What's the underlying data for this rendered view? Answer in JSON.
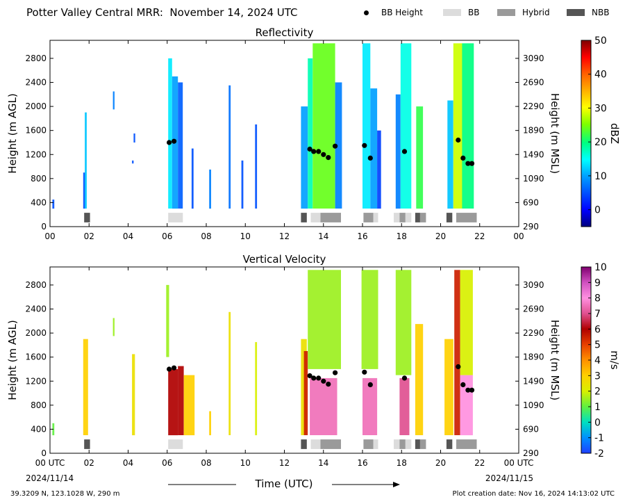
{
  "header": {
    "title": "Potter Valley Central MRR:  November 14, 2024 UTC",
    "legend": [
      {
        "label": "BB Height",
        "kind": "dot",
        "color": "#000000"
      },
      {
        "label": "BB",
        "kind": "box",
        "color": "#dcdcdc"
      },
      {
        "label": "Hybrid",
        "kind": "box",
        "color": "#9a9a9a"
      },
      {
        "label": "NBB",
        "kind": "box",
        "color": "#555555"
      }
    ]
  },
  "footer": {
    "location": "39.3209 N, 123.1028 W, 290 m",
    "created": "Plot creation date: Nov 16, 2024 14:13:02 UTC",
    "xlabel": "Time (UTC)",
    "start_utc": "00 UTC",
    "start_date": "2024/11/14",
    "end_utc": "00 UTC",
    "end_date": "2024/11/15"
  },
  "chart_data": [
    {
      "type": "heatmap",
      "title": "Reflectivity",
      "ylabel": "Height (m AGL)",
      "y2label": "Height (m MSL)",
      "cbar_label": "dBZ",
      "cbar_ticks": [
        "0",
        "10",
        "20",
        "30",
        "40",
        "50"
      ],
      "cbar_range": [
        -5,
        50
      ],
      "x_ticks": [
        "00",
        "02",
        "04",
        "06",
        "08",
        "10",
        "12",
        "14",
        "16",
        "18",
        "20",
        "22",
        "00"
      ],
      "xlim": [
        0,
        24
      ],
      "y_ticks": [
        "0",
        "400",
        "800",
        "1200",
        "1600",
        "2000",
        "2400",
        "2800"
      ],
      "y2_ticks": [
        "290",
        "690",
        "1090",
        "1490",
        "1890",
        "2290",
        "2690",
        "3090"
      ],
      "ylim": [
        0,
        3100
      ],
      "echoes": [
        {
          "t0": 0.12,
          "t1": 0.22,
          "h0": 300,
          "h1": 450,
          "dbz": 5
        },
        {
          "t0": 1.7,
          "t1": 1.8,
          "h0": 300,
          "h1": 900,
          "dbz": 5
        },
        {
          "t0": 1.78,
          "t1": 1.88,
          "h0": 300,
          "h1": 1900,
          "dbz": 12
        },
        {
          "t0": 3.22,
          "t1": 3.3,
          "h0": 1950,
          "h1": 2250,
          "dbz": 8
        },
        {
          "t0": 4.2,
          "t1": 4.28,
          "h0": 1050,
          "h1": 1100,
          "dbz": 5
        },
        {
          "t0": 4.28,
          "t1": 4.36,
          "h0": 1400,
          "h1": 1550,
          "dbz": 5
        },
        {
          "t0": 6.05,
          "t1": 6.25,
          "h0": 300,
          "h1": 2800,
          "dbz": 14
        },
        {
          "t0": 6.25,
          "t1": 6.55,
          "h0": 300,
          "h1": 2500,
          "dbz": 10
        },
        {
          "t0": 6.55,
          "t1": 6.8,
          "h0": 300,
          "h1": 2400,
          "dbz": 6
        },
        {
          "t0": 7.25,
          "t1": 7.35,
          "h0": 300,
          "h1": 1300,
          "dbz": 5
        },
        {
          "t0": 8.15,
          "t1": 8.25,
          "h0": 300,
          "h1": 950,
          "dbz": 8
        },
        {
          "t0": 9.15,
          "t1": 9.25,
          "h0": 300,
          "h1": 2350,
          "dbz": 7
        },
        {
          "t0": 9.8,
          "t1": 9.9,
          "h0": 300,
          "h1": 1100,
          "dbz": 5
        },
        {
          "t0": 10.5,
          "t1": 10.6,
          "h0": 300,
          "h1": 1700,
          "dbz": 5
        },
        {
          "t0": 12.85,
          "t1": 13.2,
          "h0": 300,
          "h1": 2000,
          "dbz": 10
        },
        {
          "t0": 13.2,
          "t1": 13.45,
          "h0": 300,
          "h1": 2800,
          "dbz": 18
        },
        {
          "t0": 13.45,
          "t1": 14.6,
          "h0": 300,
          "h1": 3050,
          "dbz": 24
        },
        {
          "t0": 14.6,
          "t1": 14.95,
          "h0": 300,
          "h1": 2400,
          "dbz": 8
        },
        {
          "t0": 16.0,
          "t1": 16.4,
          "h0": 300,
          "h1": 3050,
          "dbz": 14
        },
        {
          "t0": 16.4,
          "t1": 16.75,
          "h0": 300,
          "h1": 2300,
          "dbz": 10
        },
        {
          "t0": 16.75,
          "t1": 16.95,
          "h0": 300,
          "h1": 1600,
          "dbz": 4
        },
        {
          "t0": 17.7,
          "t1": 17.95,
          "h0": 300,
          "h1": 2200,
          "dbz": 8
        },
        {
          "t0": 17.95,
          "t1": 18.5,
          "h0": 300,
          "h1": 3050,
          "dbz": 16
        },
        {
          "t0": 18.75,
          "t1": 19.1,
          "h0": 300,
          "h1": 2000,
          "dbz": 22
        },
        {
          "t0": 20.35,
          "t1": 20.65,
          "h0": 300,
          "h1": 2100,
          "dbz": 12
        },
        {
          "t0": 20.65,
          "t1": 21.1,
          "h0": 300,
          "h1": 3050,
          "dbz": 28
        },
        {
          "t0": 21.1,
          "t1": 21.7,
          "h0": 300,
          "h1": 3050,
          "dbz": 20
        }
      ],
      "bb_heights": [
        {
          "t": 6.1,
          "h": 1400
        },
        {
          "t": 6.35,
          "h": 1420
        },
        {
          "t": 13.3,
          "h": 1290
        },
        {
          "t": 13.5,
          "h": 1250
        },
        {
          "t": 13.75,
          "h": 1250
        },
        {
          "t": 14.0,
          "h": 1200
        },
        {
          "t": 14.25,
          "h": 1150
        },
        {
          "t": 14.6,
          "h": 1340
        },
        {
          "t": 16.1,
          "h": 1350
        },
        {
          "t": 16.4,
          "h": 1140
        },
        {
          "t": 18.15,
          "h": 1250
        },
        {
          "t": 20.9,
          "h": 1440
        },
        {
          "t": 21.15,
          "h": 1140
        },
        {
          "t": 21.4,
          "h": 1050
        },
        {
          "t": 21.6,
          "h": 1050
        }
      ]
    },
    {
      "type": "heatmap",
      "title": "Vertical Velocity",
      "ylabel": "Height (m AGL)",
      "y2label": "Height (m MSL)",
      "cbar_label": "m/s",
      "cbar_ticks": [
        "-2",
        "-1",
        "0",
        "1",
        "2",
        "3",
        "4",
        "5",
        "6",
        "7",
        "8",
        "9",
        "10"
      ],
      "cbar_range": [
        -2,
        10
      ],
      "x_ticks": [
        "00 UTC",
        "02",
        "04",
        "06",
        "08",
        "10",
        "12",
        "14",
        "16",
        "18",
        "20",
        "22",
        "00 UTC"
      ],
      "xlim": [
        0,
        24
      ],
      "y_ticks": [
        "0",
        "400",
        "800",
        "1200",
        "1600",
        "2000",
        "2400",
        "2800"
      ],
      "y2_ticks": [
        "290",
        "690",
        "1090",
        "1490",
        "1890",
        "2290",
        "2690",
        "3090"
      ],
      "ylim": [
        0,
        3100
      ],
      "echoes": [
        {
          "t0": 0.12,
          "t1": 0.22,
          "h0": 300,
          "h1": 500,
          "w": 1.0
        },
        {
          "t0": 1.7,
          "t1": 1.95,
          "h0": 300,
          "h1": 1900,
          "w": 3.0
        },
        {
          "t0": 3.22,
          "t1": 3.3,
          "h0": 1950,
          "h1": 2250,
          "w": 1.5
        },
        {
          "t0": 4.2,
          "t1": 4.35,
          "h0": 300,
          "h1": 1650,
          "w": 2.5
        },
        {
          "t0": 5.95,
          "t1": 6.1,
          "h0": 1600,
          "h1": 2800,
          "w": 1.5
        },
        {
          "t0": 6.05,
          "t1": 6.55,
          "h0": 300,
          "h1": 1400,
          "w": 6.0
        },
        {
          "t0": 6.55,
          "t1": 6.85,
          "h0": 300,
          "h1": 1450,
          "w": 6.0
        },
        {
          "t0": 6.85,
          "t1": 7.4,
          "h0": 300,
          "h1": 1300,
          "w": 3.0
        },
        {
          "t0": 8.15,
          "t1": 8.25,
          "h0": 300,
          "h1": 700,
          "w": 3.0
        },
        {
          "t0": 9.15,
          "t1": 9.25,
          "h0": 300,
          "h1": 2350,
          "w": 2.5
        },
        {
          "t0": 10.5,
          "t1": 10.6,
          "h0": 300,
          "h1": 1850,
          "w": 2.0
        },
        {
          "t0": 12.85,
          "t1": 13.15,
          "h0": 300,
          "h1": 1900,
          "w": 2.5
        },
        {
          "t0": 13.0,
          "t1": 13.2,
          "h0": 300,
          "h1": 1700,
          "w": 5.5
        },
        {
          "t0": 13.2,
          "t1": 14.9,
          "h0": 1400,
          "h1": 3050,
          "w": 1.5
        },
        {
          "t0": 13.3,
          "t1": 14.7,
          "h0": 300,
          "h1": 1250,
          "w": 7.5
        },
        {
          "t0": 15.95,
          "t1": 16.8,
          "h0": 1400,
          "h1": 3050,
          "w": 1.5
        },
        {
          "t0": 16.0,
          "t1": 16.75,
          "h0": 300,
          "h1": 1250,
          "w": 7.5
        },
        {
          "t0": 17.7,
          "t1": 18.5,
          "h0": 1300,
          "h1": 3050,
          "w": 1.5
        },
        {
          "t0": 17.9,
          "t1": 18.4,
          "h0": 300,
          "h1": 1250,
          "w": 7.0
        },
        {
          "t0": 18.7,
          "t1": 19.1,
          "h0": 300,
          "h1": 2150,
          "w": 3.0
        },
        {
          "t0": 20.2,
          "t1": 20.65,
          "h0": 300,
          "h1": 1900,
          "w": 3.0
        },
        {
          "t0": 20.7,
          "t1": 21.0,
          "h0": 300,
          "h1": 3050,
          "w": 5.5
        },
        {
          "t0": 21.0,
          "t1": 21.65,
          "h0": 300,
          "h1": 1300,
          "w": 8.0
        },
        {
          "t0": 21.0,
          "t1": 21.65,
          "h0": 1300,
          "h1": 3050,
          "w": 2.0
        }
      ],
      "bb_heights": [
        {
          "t": 6.1,
          "h": 1400
        },
        {
          "t": 6.35,
          "h": 1420
        },
        {
          "t": 13.3,
          "h": 1290
        },
        {
          "t": 13.5,
          "h": 1250
        },
        {
          "t": 13.75,
          "h": 1250
        },
        {
          "t": 14.0,
          "h": 1200
        },
        {
          "t": 14.25,
          "h": 1150
        },
        {
          "t": 14.6,
          "h": 1340
        },
        {
          "t": 16.1,
          "h": 1350
        },
        {
          "t": 16.4,
          "h": 1140
        },
        {
          "t": 18.15,
          "h": 1250
        },
        {
          "t": 20.9,
          "h": 1440
        },
        {
          "t": 21.15,
          "h": 1140
        },
        {
          "t": 21.4,
          "h": 1050
        },
        {
          "t": 21.6,
          "h": 1050
        }
      ]
    }
  ],
  "bb_type_strip": [
    {
      "t0": 1.75,
      "t1": 2.05,
      "kind": "NBB",
      "color": "#555555"
    },
    {
      "t0": 6.05,
      "t1": 6.8,
      "kind": "BB",
      "color": "#dcdcdc"
    },
    {
      "t0": 12.85,
      "t1": 13.15,
      "kind": "NBB",
      "color": "#555555"
    },
    {
      "t0": 13.35,
      "t1": 13.85,
      "kind": "BB",
      "color": "#dcdcdc"
    },
    {
      "t0": 13.85,
      "t1": 14.9,
      "kind": "Hybrid",
      "color": "#9a9a9a"
    },
    {
      "t0": 16.05,
      "t1": 16.55,
      "kind": "Hybrid",
      "color": "#9a9a9a"
    },
    {
      "t0": 16.55,
      "t1": 16.8,
      "kind": "BB",
      "color": "#dcdcdc"
    },
    {
      "t0": 17.6,
      "t1": 17.9,
      "kind": "BB",
      "color": "#dcdcdc"
    },
    {
      "t0": 17.9,
      "t1": 18.2,
      "kind": "Hybrid",
      "color": "#9a9a9a"
    },
    {
      "t0": 18.2,
      "t1": 18.5,
      "kind": "BB",
      "color": "#dcdcdc"
    },
    {
      "t0": 18.7,
      "t1": 18.95,
      "kind": "NBB",
      "color": "#555555"
    },
    {
      "t0": 18.95,
      "t1": 19.25,
      "kind": "Hybrid",
      "color": "#9a9a9a"
    },
    {
      "t0": 20.3,
      "t1": 20.6,
      "kind": "NBB",
      "color": "#555555"
    },
    {
      "t0": 20.8,
      "t1": 21.85,
      "kind": "Hybrid",
      "color": "#9a9a9a"
    }
  ]
}
